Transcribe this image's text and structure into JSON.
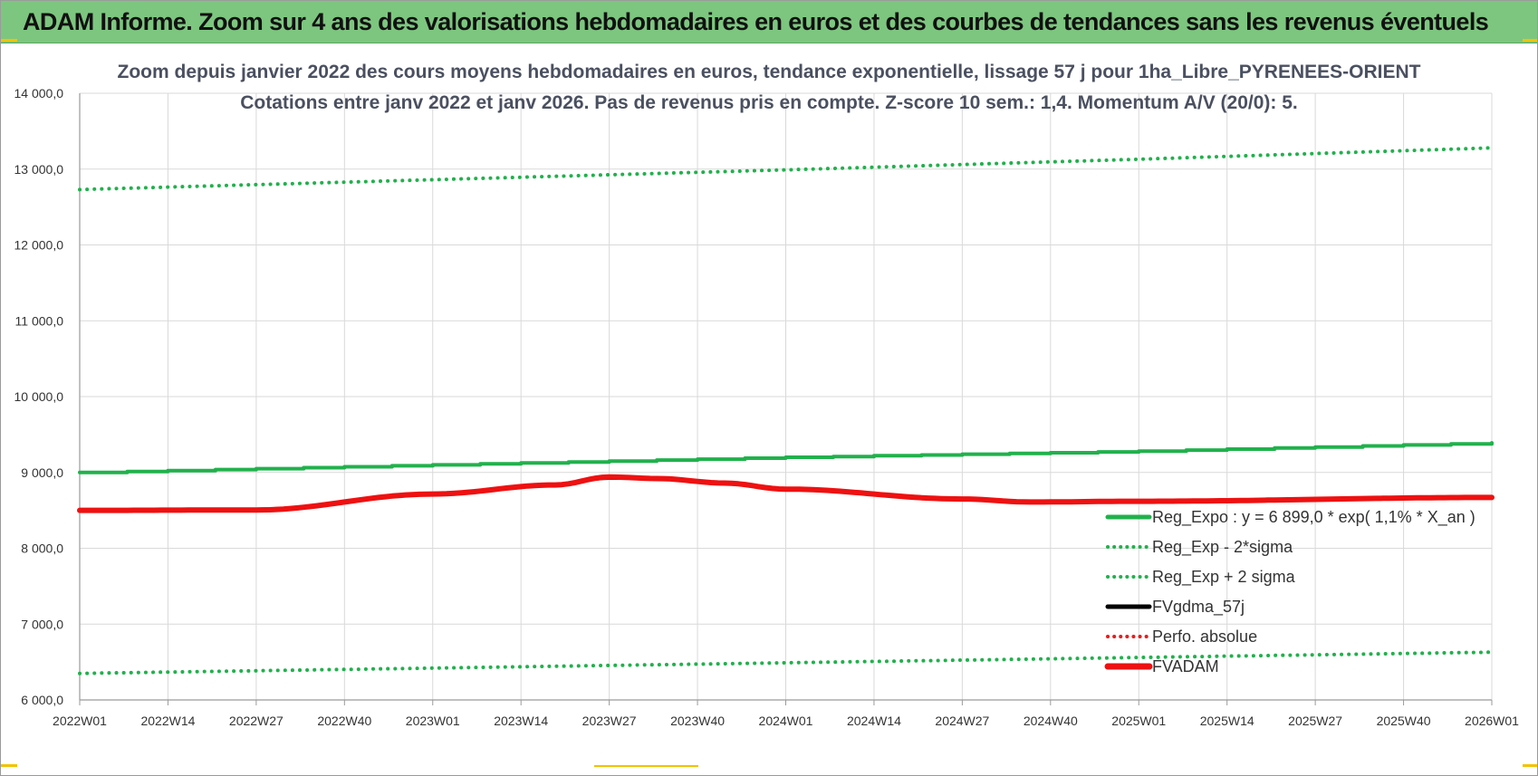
{
  "banner": {
    "title": "ADAM Informe. Zoom sur 4 ans des valorisations hebdomadaires en euros et des courbes de tendances sans les revenus éventuels"
  },
  "chart_data": {
    "type": "line",
    "title": [
      "Zoom depuis janvier 2022 des cours moyens hebdomadaires en euros, tendance exponentielle, lissage 57 j pour 1ha_Libre_PYRENEES-ORIENT",
      "Cotations entre janv 2022 et janv 2026. Pas de revenus pris en compte. Z-score 10 sem.: 1,4. Momentum A/V (20/0): 5."
    ],
    "xlabel": "",
    "ylabel": "",
    "x_ticks": [
      "2022W01",
      "2022W14",
      "2022W27",
      "2022W40",
      "2023W01",
      "2023W14",
      "2023W27",
      "2023W40",
      "2024W01",
      "2024W14",
      "2024W27",
      "2024W40",
      "2025W01",
      "2025W14",
      "2025W27",
      "2025W40",
      "2026W01"
    ],
    "x_range_weeks": 208,
    "ylim": [
      6000,
      14000
    ],
    "y_ticks": [
      6000,
      7000,
      8000,
      9000,
      10000,
      11000,
      12000,
      13000,
      14000
    ],
    "y_tick_labels": [
      "6 000,0",
      "7 000,0",
      "8 000,0",
      "9 000,0",
      "10 000,0",
      "11 000,0",
      "12 000,0",
      "13 000,0",
      "14 000,0"
    ],
    "grid": true,
    "legend_position": "bottom-right",
    "series": [
      {
        "name": "Reg_Expo : y = 6 899,0 * exp( 1,1% *  X_an )",
        "style": "solid",
        "color": "#21b14c",
        "width": 4,
        "stepped": true,
        "points": [
          [
            0,
            9000
          ],
          [
            52,
            9100
          ],
          [
            104,
            9200
          ],
          [
            156,
            9280
          ],
          [
            208,
            9390
          ]
        ]
      },
      {
        "name": "Reg_Exp - 2*sigma",
        "style": "dotted",
        "color": "#21b14c",
        "width": 4,
        "points": [
          [
            0,
            6350
          ],
          [
            52,
            6420
          ],
          [
            104,
            6490
          ],
          [
            156,
            6560
          ],
          [
            208,
            6630
          ]
        ]
      },
      {
        "name": "Reg_Exp + 2 sigma",
        "style": "dotted",
        "color": "#21b14c",
        "width": 4,
        "points": [
          [
            0,
            12730
          ],
          [
            52,
            12860
          ],
          [
            104,
            12990
          ],
          [
            156,
            13130
          ],
          [
            208,
            13280
          ]
        ]
      },
      {
        "name": "FVgdma_57j",
        "style": "solid",
        "color": "#000000",
        "width": 3,
        "points": [
          [
            0,
            8510
          ],
          [
            26,
            8520
          ],
          [
            52,
            8720
          ],
          [
            70,
            8840
          ],
          [
            78,
            8920
          ],
          [
            85,
            8920
          ],
          [
            95,
            8860
          ],
          [
            104,
            8780
          ],
          [
            130,
            8650
          ],
          [
            140,
            8620
          ],
          [
            156,
            8620
          ],
          [
            208,
            8660
          ]
        ]
      },
      {
        "name": "Perfo. absolue",
        "style": "dotted",
        "color": "#e81c1c",
        "width": 3,
        "points": [
          [
            0,
            8500
          ],
          [
            26,
            8505
          ],
          [
            52,
            8715
          ],
          [
            70,
            8835
          ],
          [
            78,
            8940
          ],
          [
            85,
            8920
          ],
          [
            95,
            8860
          ],
          [
            104,
            8780
          ],
          [
            130,
            8650
          ],
          [
            140,
            8610
          ],
          [
            156,
            8620
          ],
          [
            208,
            8670
          ]
        ]
      },
      {
        "name": "FVADAM",
        "style": "solid",
        "color": "#ee1111",
        "width": 6,
        "points": [
          [
            0,
            8500
          ],
          [
            26,
            8505
          ],
          [
            52,
            8715
          ],
          [
            70,
            8835
          ],
          [
            78,
            8940
          ],
          [
            85,
            8920
          ],
          [
            95,
            8860
          ],
          [
            104,
            8780
          ],
          [
            130,
            8650
          ],
          [
            140,
            8610
          ],
          [
            156,
            8620
          ],
          [
            208,
            8670
          ]
        ]
      }
    ]
  }
}
